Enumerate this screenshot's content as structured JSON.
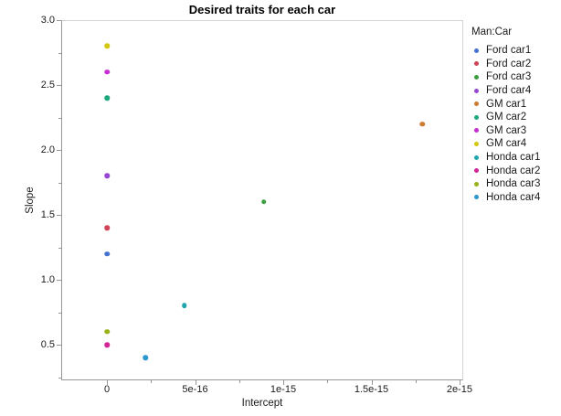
{
  "chart_data": {
    "type": "scatter",
    "title": "Desired traits for each car",
    "xlabel": "Intercept",
    "ylabel": "Slope",
    "legend_title": "Man:Car",
    "legend_position": "right",
    "grid": false,
    "xlim": [
      -2.59e-16,
      2.021e-15
    ],
    "ylim": [
      0.2254,
      3.0
    ],
    "x_ticks": {
      "major": [
        {
          "value": 0,
          "label": "0"
        },
        {
          "value": 5e-16,
          "label": "5e-16"
        },
        {
          "value": 1e-15,
          "label": "1e-15"
        },
        {
          "value": 1.5e-15,
          "label": "1.5e-15"
        },
        {
          "value": 2e-15,
          "label": "2e-15"
        }
      ],
      "minor": [
        2.5e-16,
        7.5e-16,
        1.25e-15,
        1.75e-15
      ]
    },
    "y_ticks": {
      "major": [
        {
          "value": 3.0,
          "label": "3.0"
        },
        {
          "value": 2.5,
          "label": "2.5"
        },
        {
          "value": 2.0,
          "label": "2.0"
        },
        {
          "value": 1.5,
          "label": "1.5"
        },
        {
          "value": 1.0,
          "label": "1.0"
        },
        {
          "value": 0.5,
          "label": "0.5"
        }
      ],
      "minor": [
        2.75,
        2.25,
        1.75,
        1.25,
        0.75,
        0.25
      ]
    },
    "series": [
      {
        "name": "Ford car1",
        "color": "#4673d1",
        "points": [
          [
            0,
            1.2
          ]
        ]
      },
      {
        "name": "Ford car2",
        "color": "#cf4457",
        "points": [
          [
            0,
            1.4
          ]
        ]
      },
      {
        "name": "Ford car3",
        "color": "#3c9e3f",
        "points": [
          [
            8.9e-16,
            1.6
          ]
        ]
      },
      {
        "name": "Ford car4",
        "color": "#9747d1",
        "points": [
          [
            0,
            1.8
          ]
        ]
      },
      {
        "name": "GM car1",
        "color": "#ce7b32",
        "points": [
          [
            1.79e-15,
            2.2
          ]
        ]
      },
      {
        "name": "GM car2",
        "color": "#1ca77f",
        "points": [
          [
            0,
            2.4
          ]
        ]
      },
      {
        "name": "GM car3",
        "color": "#c72dd1",
        "points": [
          [
            0,
            2.6
          ]
        ]
      },
      {
        "name": "GM car4",
        "color": "#d3c711",
        "points": [
          [
            0,
            2.8
          ]
        ]
      },
      {
        "name": "Honda car1",
        "color": "#1fa6ac",
        "points": [
          [
            4.4e-16,
            0.8
          ]
        ]
      },
      {
        "name": "Honda car2",
        "color": "#d12694",
        "points": [
          [
            0,
            0.5
          ]
        ]
      },
      {
        "name": "Honda car3",
        "color": "#97b118",
        "points": [
          [
            0,
            0.6
          ]
        ]
      },
      {
        "name": "Honda car4",
        "color": "#2e97cc",
        "points": [
          [
            2.2e-16,
            0.4
          ]
        ]
      }
    ]
  }
}
